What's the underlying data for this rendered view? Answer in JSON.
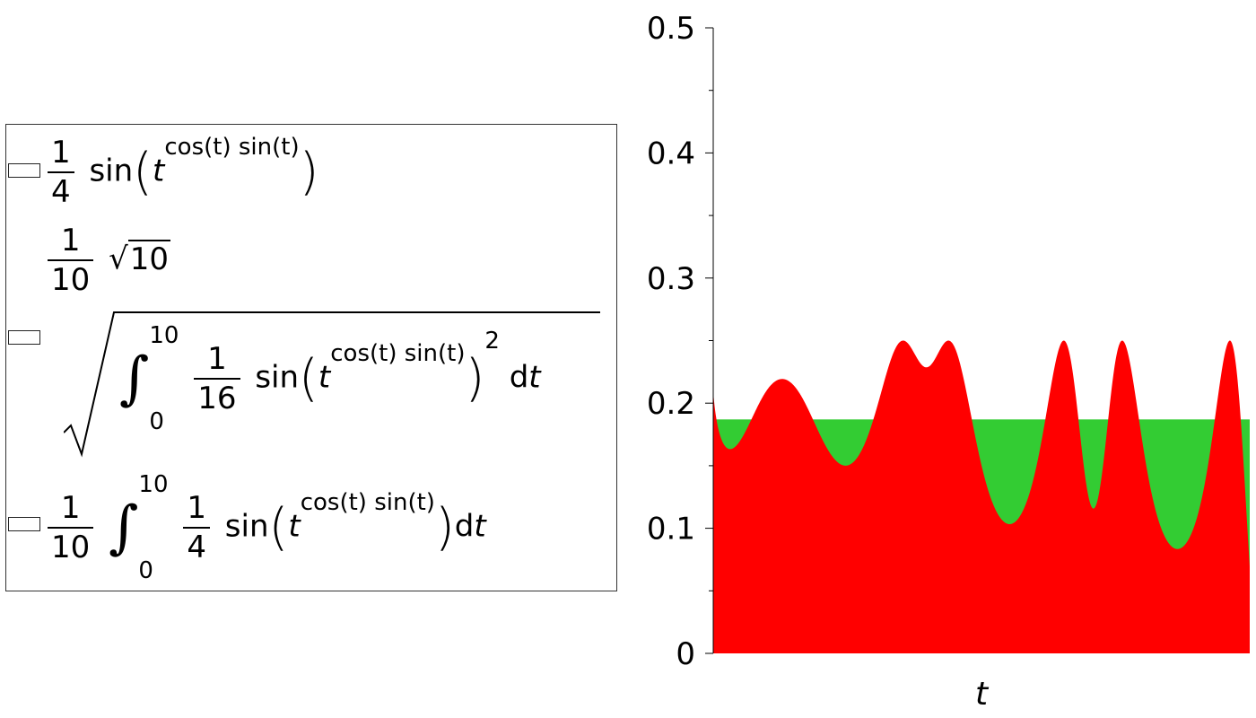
{
  "legend": {
    "entries": [
      {
        "color": "#ff0000",
        "frac_num": "1",
        "frac_den": "4",
        "fn": "sin",
        "var": "t",
        "exponent": "cos(t) sin(t)"
      },
      {
        "frac_num": "1",
        "frac_den": "10",
        "radicand": "10"
      },
      {
        "color": "#33cc33",
        "int_upper": "10",
        "int_lower": "0",
        "frac_num": "1",
        "frac_den": "16",
        "fn": "sin",
        "var": "t",
        "exponent": "cos(t) sin(t)",
        "power": "2",
        "diff": "d",
        "diff_var": "t"
      },
      {
        "color": "#daa520",
        "frac_num": "1",
        "frac_den": "10",
        "int_upper": "10",
        "int_lower": "0",
        "inner_num": "1",
        "inner_den": "4",
        "fn": "sin",
        "var": "t",
        "exponent": "cos(t) sin(t)",
        "diff": "d",
        "diff_var": "t"
      }
    ]
  },
  "chart_data": {
    "type": "area",
    "xlabel": "t",
    "ylabel": "",
    "xlim": [
      0,
      10
    ],
    "ylim": [
      0,
      0.5
    ],
    "yticks": [
      "0",
      "0.1",
      "0.2",
      "0.3",
      "0.4",
      "0.5"
    ],
    "series": [
      {
        "name": "(1/4) sin(t^(cos(t) sin(t)))",
        "color": "#ff0000",
        "function": "0.25*sin(t^(cos(t)*sin(t)))"
      },
      {
        "name": "sqrt(1/10 ∫₀¹⁰ (1/16) sin(t^(cos(t) sin(t)))² dt)",
        "color": "#33cc33",
        "constant": 0.187
      }
    ]
  }
}
